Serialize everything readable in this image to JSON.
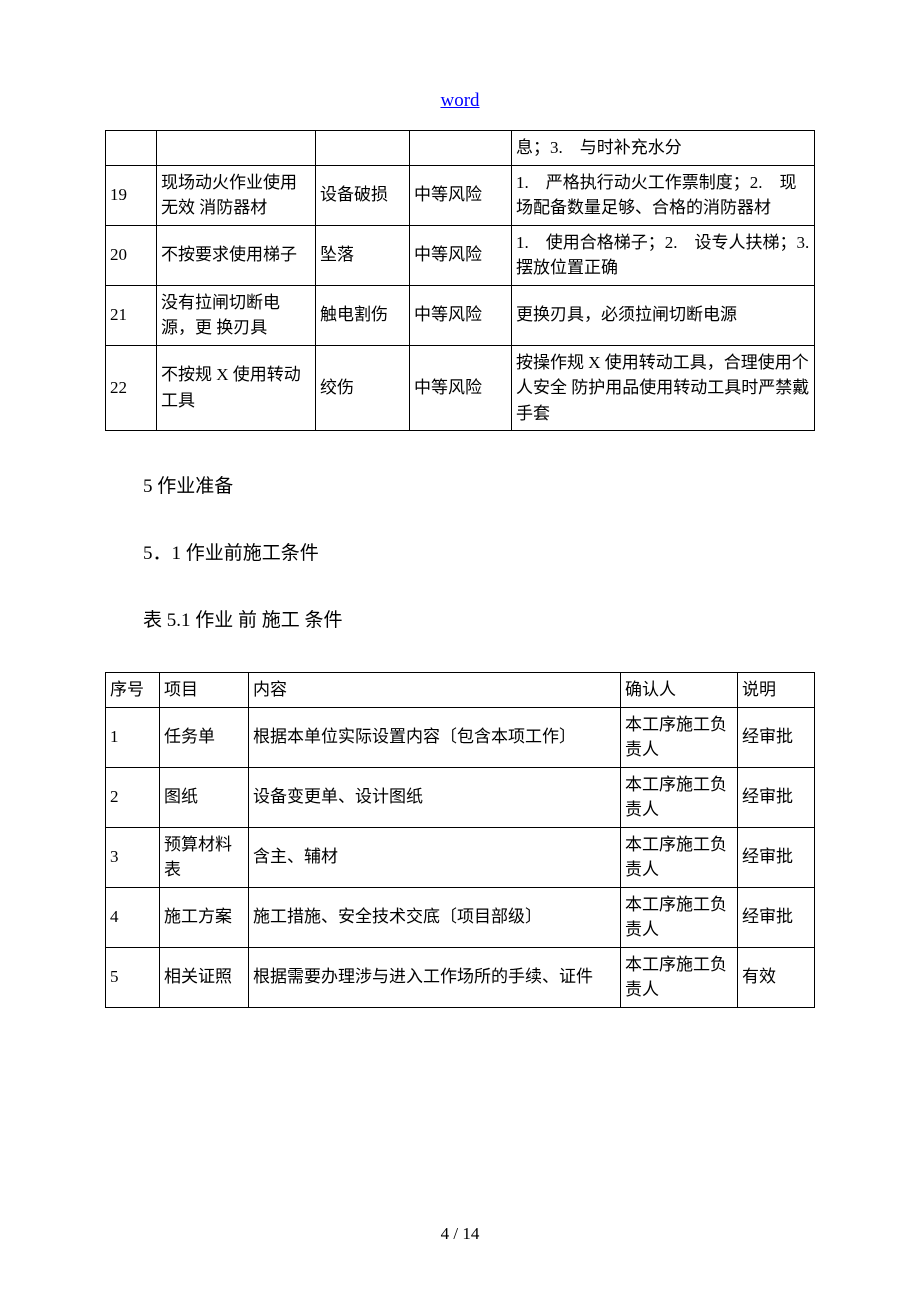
{
  "header": {
    "link_text": "word"
  },
  "table1": {
    "rows": [
      {
        "c1": "",
        "c2": "",
        "c3": "",
        "c4": "",
        "c5": "息；3.　与时补充水分"
      },
      {
        "c1": "19",
        "c2": "现场动火作业使用无效 消防器材",
        "c3": "设备破损",
        "c4": "中等风险",
        "c5": "1.　严格执行动火工作票制度；2.　现场配备数量足够、合格的消防器材"
      },
      {
        "c1": "20",
        "c2": "不按要求使用梯子",
        "c3": "坠落",
        "c4": "中等风险",
        "c5": "1.　使用合格梯子；2.　设专人扶梯；3.　摆放位置正确"
      },
      {
        "c1": "21",
        "c2": "没有拉闸切断电源，更 换刃具",
        "c3": "触电割伤",
        "c4": "中等风险",
        "c5": "更换刃具，必须拉闸切断电源"
      },
      {
        "c1": "22",
        "c2": "不按规 X 使用转动工具",
        "c3": "绞伤",
        "c4": "中等风险",
        "c5": "按操作规 X 使用转动工具，合理使用个人安全 防护用品使用转动工具时严禁戴手套"
      }
    ]
  },
  "headings": {
    "section5": "5 作业准备",
    "section5_1": "5．1 作业前施工条件",
    "table5_1_caption": "表 5.1 作业 前 施工 条件"
  },
  "table2": {
    "header": {
      "c1": "序号",
      "c2": "项目",
      "c3": "内容",
      "c4": "确认人",
      "c5": "说明"
    },
    "rows": [
      {
        "c1": "1",
        "c2": "任务单",
        "c3": "根据本单位实际设置内容〔包含本项工作〕",
        "c4": "本工序施工负责人",
        "c5": "经审批"
      },
      {
        "c1": "2",
        "c2": "图纸",
        "c3": "设备变更单、设计图纸",
        "c4": "本工序施工负责人",
        "c5": "经审批"
      },
      {
        "c1": "3",
        "c2": "预算材料表",
        "c3": "含主、辅材",
        "c4": "本工序施工负责人",
        "c5": "经审批"
      },
      {
        "c1": "4",
        "c2": "施工方案",
        "c3": "施工措施、安全技术交底〔项目部级〕",
        "c4": "本工序施工负责人",
        "c5": "经审批"
      },
      {
        "c1": "5",
        "c2": "相关证照",
        "c3": "根据需要办理涉与进入工作场所的手续、证件",
        "c4": "本工序施工负责人",
        "c5": "有效"
      }
    ]
  },
  "footer": {
    "page_indicator": "4 / 14"
  }
}
